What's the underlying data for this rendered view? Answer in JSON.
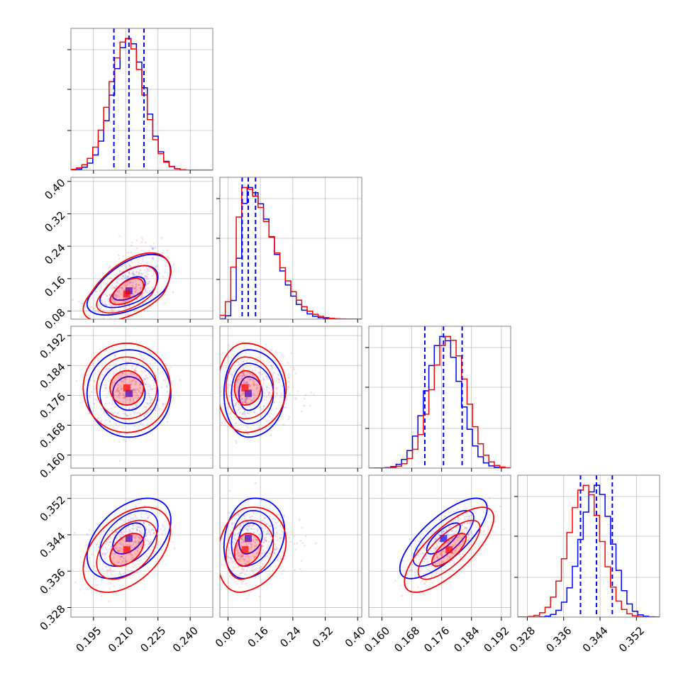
{
  "chart_data": {
    "type": "corner",
    "parameters": [
      {
        "ticks": [
          "0.195",
          "0.210",
          "0.225",
          "0.240"
        ],
        "range": [
          0.1845,
          0.2505
        ]
      },
      {
        "ticks": [
          "0.08",
          "0.16",
          "0.24",
          "0.32",
          "0.40"
        ],
        "range": [
          0.06,
          0.41
        ]
      },
      {
        "ticks": [
          "0.160",
          "0.168",
          "0.176",
          "0.184",
          "0.192"
        ],
        "range": [
          0.1565,
          0.1945
        ]
      },
      {
        "ticks": [
          "0.328",
          "0.336",
          "0.344",
          "0.352"
        ],
        "range": [
          0.3259,
          0.3571
        ]
      }
    ],
    "series": [
      {
        "color": "#0000ff",
        "centers": [
          0.2115,
          0.13,
          0.1765,
          0.3432
        ],
        "spreads": [
          0.0075,
          0.023,
          0.0045,
          0.0034
        ],
        "quantile_lines": [
          [
            0.2045,
            0.2115,
            0.2185
          ],
          [
            0.115,
            0.13,
            0.148
          ],
          [
            0.1715,
            0.1765,
            0.1815
          ],
          [
            0.3397,
            0.3432,
            0.3467
          ]
        ]
      },
      {
        "color": "#ff0000",
        "centers": [
          0.2105,
          0.122,
          0.178,
          0.3407
        ],
        "spreads": [
          0.0078,
          0.026,
          0.0046,
          0.0036
        ],
        "quantile_lines": null
      }
    ],
    "correlations": {
      "blue": {
        "1-0": 0.55,
        "2-0": 0.0,
        "2-1": 0.0,
        "3-0": 0.45,
        "3-1": 0.2,
        "3-2": 0.75
      },
      "red": {
        "1-0": 0.55,
        "2-0": 0.0,
        "2-1": 0.0,
        "3-0": 0.45,
        "3-1": 0.2,
        "3-2": 0.75
      }
    },
    "colors": {
      "blue": "#0000ff",
      "red": "#ff0000",
      "grid": "#bfbfbf"
    },
    "grid": true,
    "histogram": "step",
    "contours": "1-2 sigma density with filled core"
  }
}
